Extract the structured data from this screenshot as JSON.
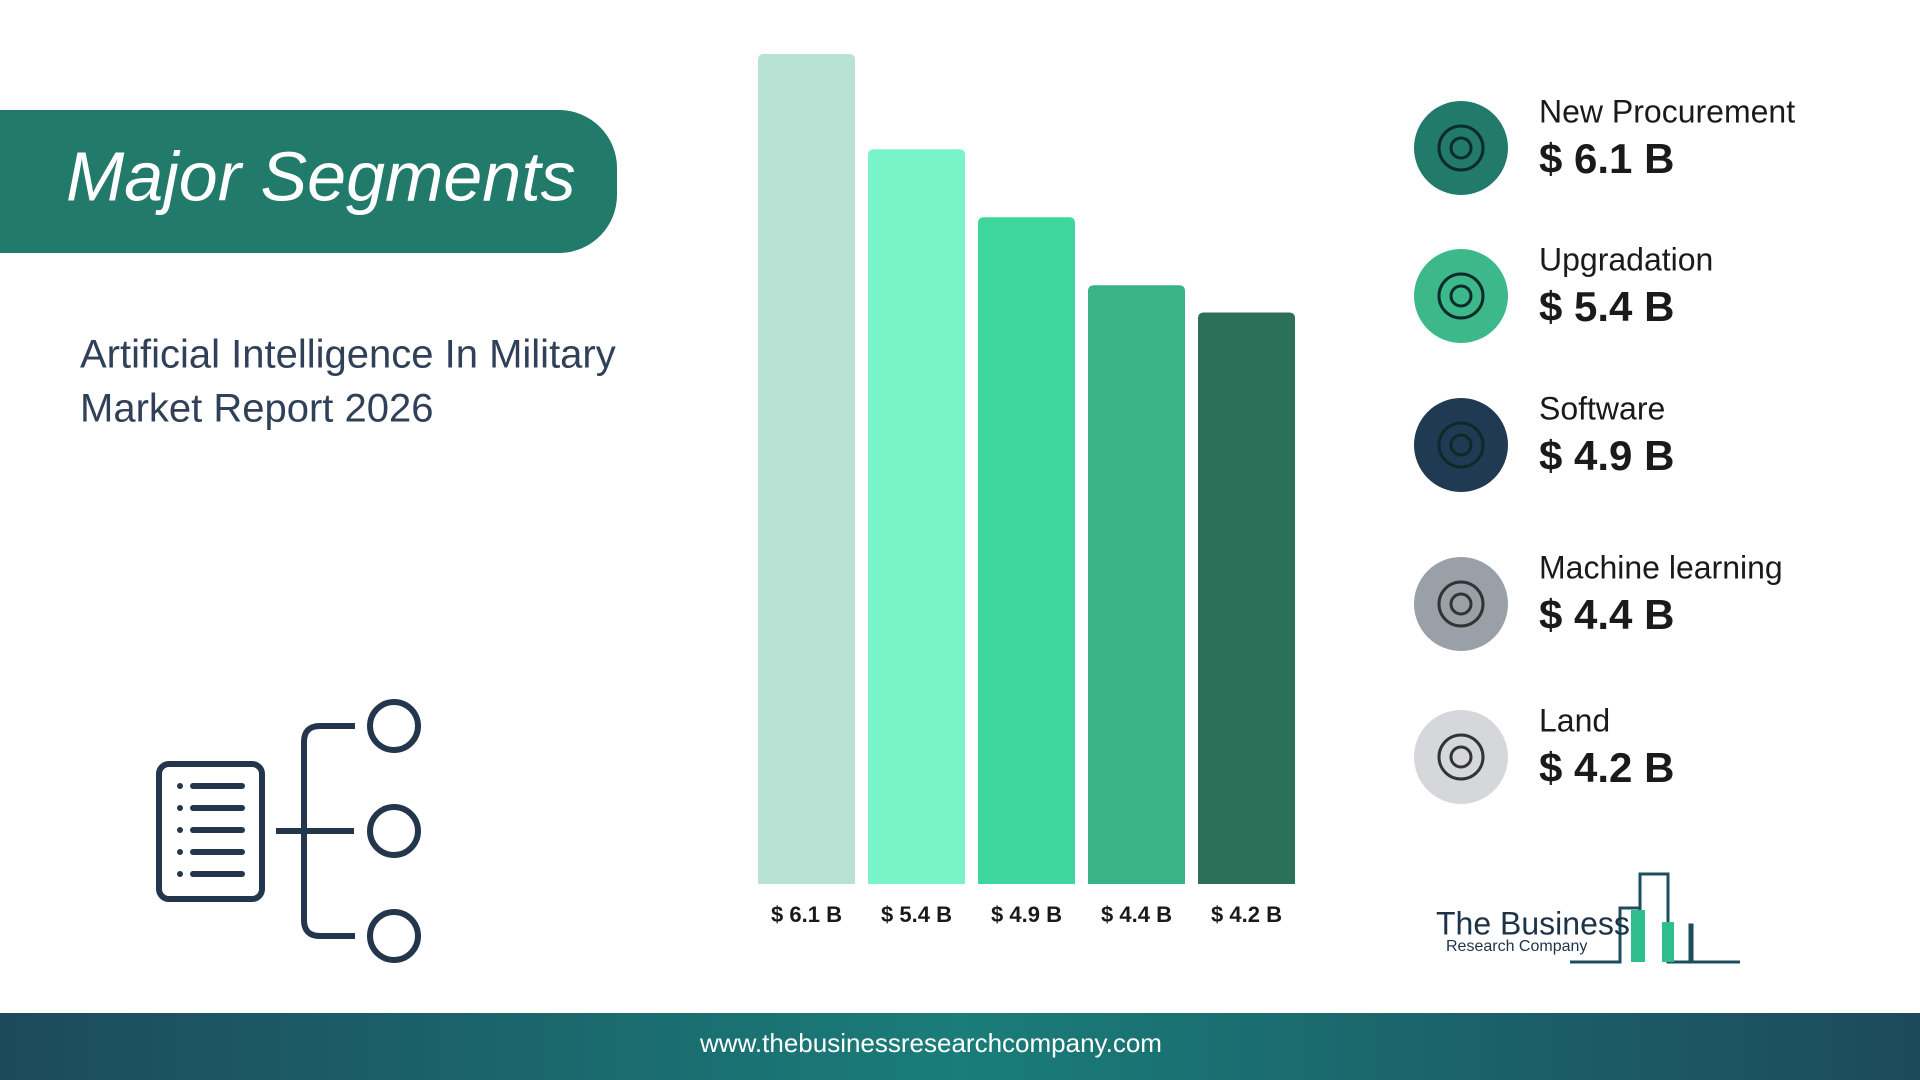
{
  "chart_data": {
    "type": "bar",
    "title": "Major Segments",
    "subtitle": [
      "Artificial Intelligence In Military",
      "Market Report 2026"
    ],
    "categories": [
      "New Procurement",
      "Upgradation",
      "Software",
      "Machine learning",
      "Land"
    ],
    "values": [
      6.1,
      5.4,
      4.9,
      4.4,
      4.2
    ],
    "value_labels": [
      "$ 6.1 B",
      "$ 5.4 B",
      "$ 4.9 B",
      "$ 4.4 B",
      "$ 4.2 B"
    ],
    "colors": [
      "#b8e3d4",
      "#79f4c8",
      "#3dd69c",
      "#3bb388",
      "#2d7059"
    ]
  },
  "logo": {
    "name": "The Business",
    "tagline": "Research Company"
  },
  "footer": {
    "url": "www.thebusinessresearchcompany.com"
  }
}
